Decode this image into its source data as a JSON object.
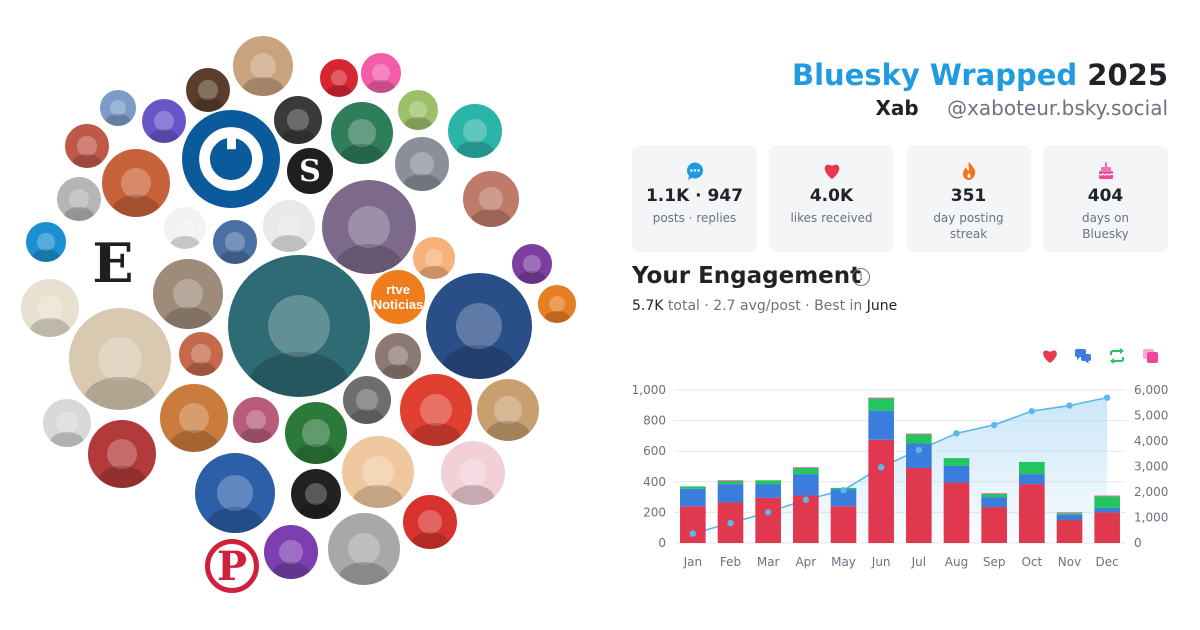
{
  "header": {
    "brand": "Bluesky Wrapped",
    "year": "2025",
    "display_name": "Xab",
    "handle": "@xaboteur.bsky.social"
  },
  "stats": [
    {
      "icon": "chat-bubble-icon",
      "value": "1.1K · 947",
      "label": "posts · replies",
      "color": "#1f9bdf"
    },
    {
      "icon": "heart-icon",
      "value": "4.0K",
      "label": "likes received",
      "color": "#e63950"
    },
    {
      "icon": "flame-icon",
      "value": "351",
      "label": "day posting streak",
      "color": "#f97316"
    },
    {
      "icon": "cake-icon",
      "value": "404",
      "label": "days on Bluesky",
      "color": "#ec4899"
    }
  ],
  "engagement": {
    "title": "Your Engagement",
    "total": "5.7K",
    "total_label": "total",
    "avg": "2.7 avg/post",
    "best_prefix": "Best in",
    "best_month": "June"
  },
  "legend": [
    {
      "icon": "heart-icon",
      "color": "#e63950"
    },
    {
      "icon": "reply-icon",
      "color": "#3b7ddd"
    },
    {
      "icon": "repost-icon",
      "color": "#22c55e"
    },
    {
      "icon": "quote-icon",
      "color": "#ec4899"
    }
  ],
  "chart_data": {
    "type": "bar",
    "stacked": true,
    "categories": [
      "Jan",
      "Feb",
      "Mar",
      "Apr",
      "May",
      "Jun",
      "Jul",
      "Aug",
      "Sep",
      "Oct",
      "Nov",
      "Dec"
    ],
    "series": [
      {
        "values": [
          240,
          265,
          295,
          310,
          240,
          675,
          490,
          395,
          235,
          385,
          150,
          200
        ],
        "color": "#e0384f"
      },
      {
        "values": [
          115,
          120,
          90,
          140,
          110,
          190,
          160,
          110,
          65,
          65,
          35,
          30
        ],
        "color": "#3b7ddd"
      },
      {
        "values": [
          15,
          20,
          25,
          40,
          10,
          80,
          60,
          50,
          20,
          80,
          10,
          75
        ],
        "color": "#22c55e"
      },
      {
        "values": [
          0,
          5,
          0,
          5,
          0,
          5,
          5,
          0,
          5,
          0,
          5,
          5
        ],
        "color": "#ec4899"
      }
    ],
    "cumulative": {
      "values": [
        370,
        780,
        1200,
        1700,
        2070,
        2970,
        3650,
        4300,
        4630,
        5170,
        5390,
        5700
      ],
      "color": "#5bb8ec"
    },
    "ylim": [
      0,
      1000
    ],
    "y_ticks": [
      "0",
      "200",
      "400",
      "600",
      "800",
      "1,000"
    ],
    "y2lim": [
      0,
      6000
    ],
    "y2_ticks": [
      "0",
      "1,000",
      "2,000",
      "3,000",
      "4,000",
      "5,000",
      "6,000"
    ],
    "grid": true
  },
  "bubbles": [
    {
      "name": "avatar",
      "color": "#c9a27e"
    },
    {
      "name": "avatar",
      "color": "#d72631"
    },
    {
      "name": "avatar",
      "color": "#f25ca8"
    },
    {
      "name": "avatar",
      "color": "#5a3e2b"
    },
    {
      "name": "avatar",
      "color": "#7a9cc6"
    },
    {
      "name": "avatar",
      "color": "#6a55c8"
    },
    {
      "name": "avatar",
      "color": "#1a4e7a"
    },
    {
      "name": "avatar",
      "color": "#3a3a3a"
    },
    {
      "name": "avatar",
      "color": "#2e7d5b"
    },
    {
      "name": "avatar",
      "color": "#9cc06a"
    },
    {
      "name": "avatar",
      "color": "#2bb5a8"
    },
    {
      "name": "avatar",
      "color": "#c0584a"
    },
    {
      "name": "avatar",
      "color": "#c8623a"
    },
    {
      "name": "avatar",
      "color": "#8a8f99"
    },
    {
      "name": "avatar",
      "color": "#b5b5b5"
    },
    {
      "name": "avatar",
      "color": "#f2f2f2"
    },
    {
      "name": "avatar",
      "color": "#4a6fa5"
    },
    {
      "name": "avatar",
      "color": "#e9e9e9"
    },
    {
      "name": "avatar",
      "color": "#7d6a8a"
    },
    {
      "name": "avatar",
      "color": "#c07a6a"
    },
    {
      "name": "avatar",
      "color": "#1b8fd1"
    },
    {
      "name": "avatar",
      "color": "#f7b27a"
    },
    {
      "name": "avatar",
      "color": "#7b3fa0"
    },
    {
      "name": "avatar",
      "color": "#9e8b7a"
    },
    {
      "name": "avatar",
      "color": "#e8e1cf"
    },
    {
      "name": "avatar",
      "color": "#2a4e88"
    },
    {
      "name": "avatar",
      "color": "#e67e22"
    },
    {
      "name": "avatar",
      "color": "#d8c9b0"
    },
    {
      "name": "avatar",
      "color": "#c46a4a"
    },
    {
      "name": "avatar",
      "color": "#8c7a72"
    },
    {
      "name": "avatar",
      "color": "#6e6e6e"
    },
    {
      "name": "avatar",
      "color": "#c97c3e"
    },
    {
      "name": "avatar",
      "color": "#b85c7a"
    },
    {
      "name": "avatar",
      "color": "#2c7a3a"
    },
    {
      "name": "avatar",
      "color": "#e04030"
    },
    {
      "name": "avatar",
      "color": "#d8d8d8"
    },
    {
      "name": "avatar",
      "color": "#c8a070"
    },
    {
      "name": "avatar",
      "color": "#b33a3a"
    },
    {
      "name": "avatar",
      "color": "#f0c8a0"
    },
    {
      "name": "avatar",
      "color": "#f2d0d8"
    },
    {
      "name": "avatar",
      "color": "#222222"
    },
    {
      "name": "avatar",
      "color": "#2b5fa8"
    },
    {
      "name": "avatar",
      "color": "#d9322e"
    },
    {
      "name": "avatar",
      "color": "#7c3fb0"
    },
    {
      "name": "avatar",
      "color": "#a8a8a8"
    }
  ],
  "logos": [
    {
      "kind": "ring",
      "text": "",
      "color": "#0a5a9c"
    },
    {
      "kind": "text",
      "text": "S",
      "color": "#1f1f1f"
    },
    {
      "kind": "text",
      "text": "E",
      "color": "#1f1f1f"
    },
    {
      "kind": "text",
      "text": "rtve Noticias",
      "color": "#f07d1c"
    },
    {
      "kind": "text",
      "text": "P",
      "color": "#d0213c"
    }
  ]
}
